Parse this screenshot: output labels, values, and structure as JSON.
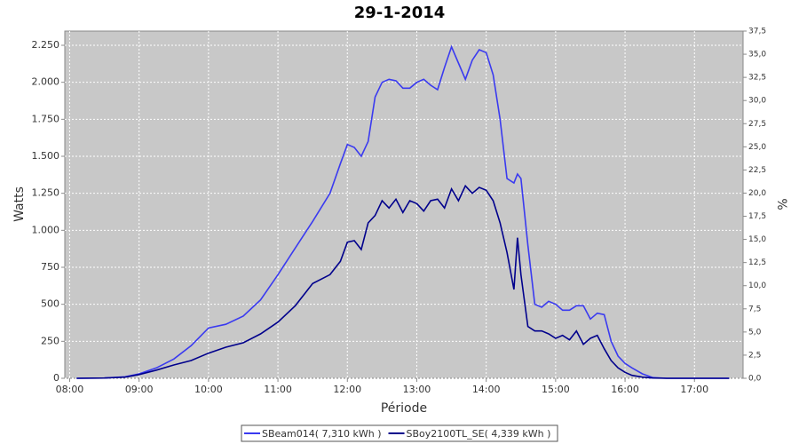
{
  "chart_data": {
    "type": "line",
    "title": "29-1-2014",
    "xlabel": "Période",
    "ylabel": "Watts",
    "y2label": "%",
    "x": [
      8.1,
      8.5,
      8.8,
      9.0,
      9.25,
      9.5,
      9.75,
      10.0,
      10.25,
      10.5,
      10.75,
      11.0,
      11.25,
      11.5,
      11.75,
      11.9,
      12.0,
      12.1,
      12.2,
      12.3,
      12.4,
      12.5,
      12.6,
      12.7,
      12.8,
      12.9,
      13.0,
      13.1,
      13.2,
      13.3,
      13.4,
      13.5,
      13.6,
      13.7,
      13.8,
      13.9,
      14.0,
      14.1,
      14.2,
      14.3,
      14.4,
      14.45,
      14.5,
      14.6,
      14.7,
      14.8,
      14.9,
      15.0,
      15.1,
      15.2,
      15.3,
      15.4,
      15.5,
      15.6,
      15.7,
      15.8,
      15.9,
      16.0,
      16.1,
      16.25,
      16.4,
      16.6,
      17.5
    ],
    "series": [
      {
        "name": "SBeam014( 7,310 kWh )",
        "color": "#3a3af0",
        "values": [
          0,
          2,
          10,
          30,
          70,
          130,
          220,
          340,
          365,
          420,
          530,
          700,
          880,
          1060,
          1250,
          1450,
          1580,
          1560,
          1500,
          1600,
          1900,
          2000,
          2020,
          2010,
          1960,
          1960,
          2000,
          2020,
          1980,
          1950,
          2100,
          2240,
          2130,
          2020,
          2150,
          2220,
          2200,
          2050,
          1750,
          1350,
          1320,
          1380,
          1350,
          900,
          500,
          480,
          520,
          500,
          460,
          460,
          490,
          490,
          400,
          440,
          430,
          250,
          150,
          100,
          70,
          30,
          5,
          0,
          0
        ]
      },
      {
        "name": "SBoy2100TL_SE( 4,339 kWh )",
        "color": "#00008c",
        "values": [
          0,
          2,
          8,
          25,
          55,
          90,
          120,
          170,
          210,
          240,
          300,
          380,
          490,
          640,
          700,
          790,
          920,
          930,
          870,
          1050,
          1100,
          1200,
          1150,
          1210,
          1120,
          1200,
          1180,
          1130,
          1200,
          1210,
          1150,
          1280,
          1200,
          1300,
          1250,
          1290,
          1270,
          1200,
          1050,
          850,
          600,
          950,
          700,
          350,
          320,
          320,
          300,
          270,
          290,
          260,
          320,
          230,
          270,
          290,
          200,
          120,
          70,
          40,
          20,
          8,
          2,
          0,
          0
        ]
      }
    ],
    "xlim": [
      7.93,
      17.7
    ],
    "xticks": [
      {
        "value": 8,
        "label": "08:00"
      },
      {
        "value": 9,
        "label": "09:00"
      },
      {
        "value": 10,
        "label": "10:00"
      },
      {
        "value": 11,
        "label": "11:00"
      },
      {
        "value": 12,
        "label": "12:00"
      },
      {
        "value": 13,
        "label": "13:00"
      },
      {
        "value": 14,
        "label": "14:00"
      },
      {
        "value": 15,
        "label": "15:00"
      },
      {
        "value": 16,
        "label": "16:00"
      },
      {
        "value": 17,
        "label": "17:00"
      }
    ],
    "ylim": [
      0,
      2346
    ],
    "yticks": [
      0,
      250,
      500,
      750,
      {
        "value": 1000,
        "label": "1.000"
      },
      {
        "value": 1250,
        "label": "1.250"
      },
      {
        "value": 1500,
        "label": "1.500"
      },
      {
        "value": 1750,
        "label": "1.750"
      },
      {
        "value": 2000,
        "label": "2.000"
      },
      {
        "value": 2250,
        "label": "2.250"
      }
    ],
    "y2lim": [
      0,
      37.5
    ],
    "y2ticks": [
      {
        "value": 0,
        "label": "0,0"
      },
      {
        "value": 2.5,
        "label": "2,5"
      },
      {
        "value": 5,
        "label": "5,0"
      },
      {
        "value": 7.5,
        "label": "7,5"
      },
      {
        "value": 10,
        "label": "10,0"
      },
      {
        "value": 12.5,
        "label": "12,5"
      },
      {
        "value": 15,
        "label": "15,0"
      },
      {
        "value": 17.5,
        "label": "17,5"
      },
      {
        "value": 20,
        "label": "20,0"
      },
      {
        "value": 22.5,
        "label": "22,5"
      },
      {
        "value": 25,
        "label": "25,0"
      },
      {
        "value": 27.5,
        "label": "27,5"
      },
      {
        "value": 30,
        "label": "30,0"
      },
      {
        "value": 32.5,
        "label": "32,5"
      },
      {
        "value": 35,
        "label": "35,0"
      },
      {
        "value": 37.5,
        "label": "37,5"
      }
    ],
    "grid": true,
    "legend": "bottom"
  }
}
